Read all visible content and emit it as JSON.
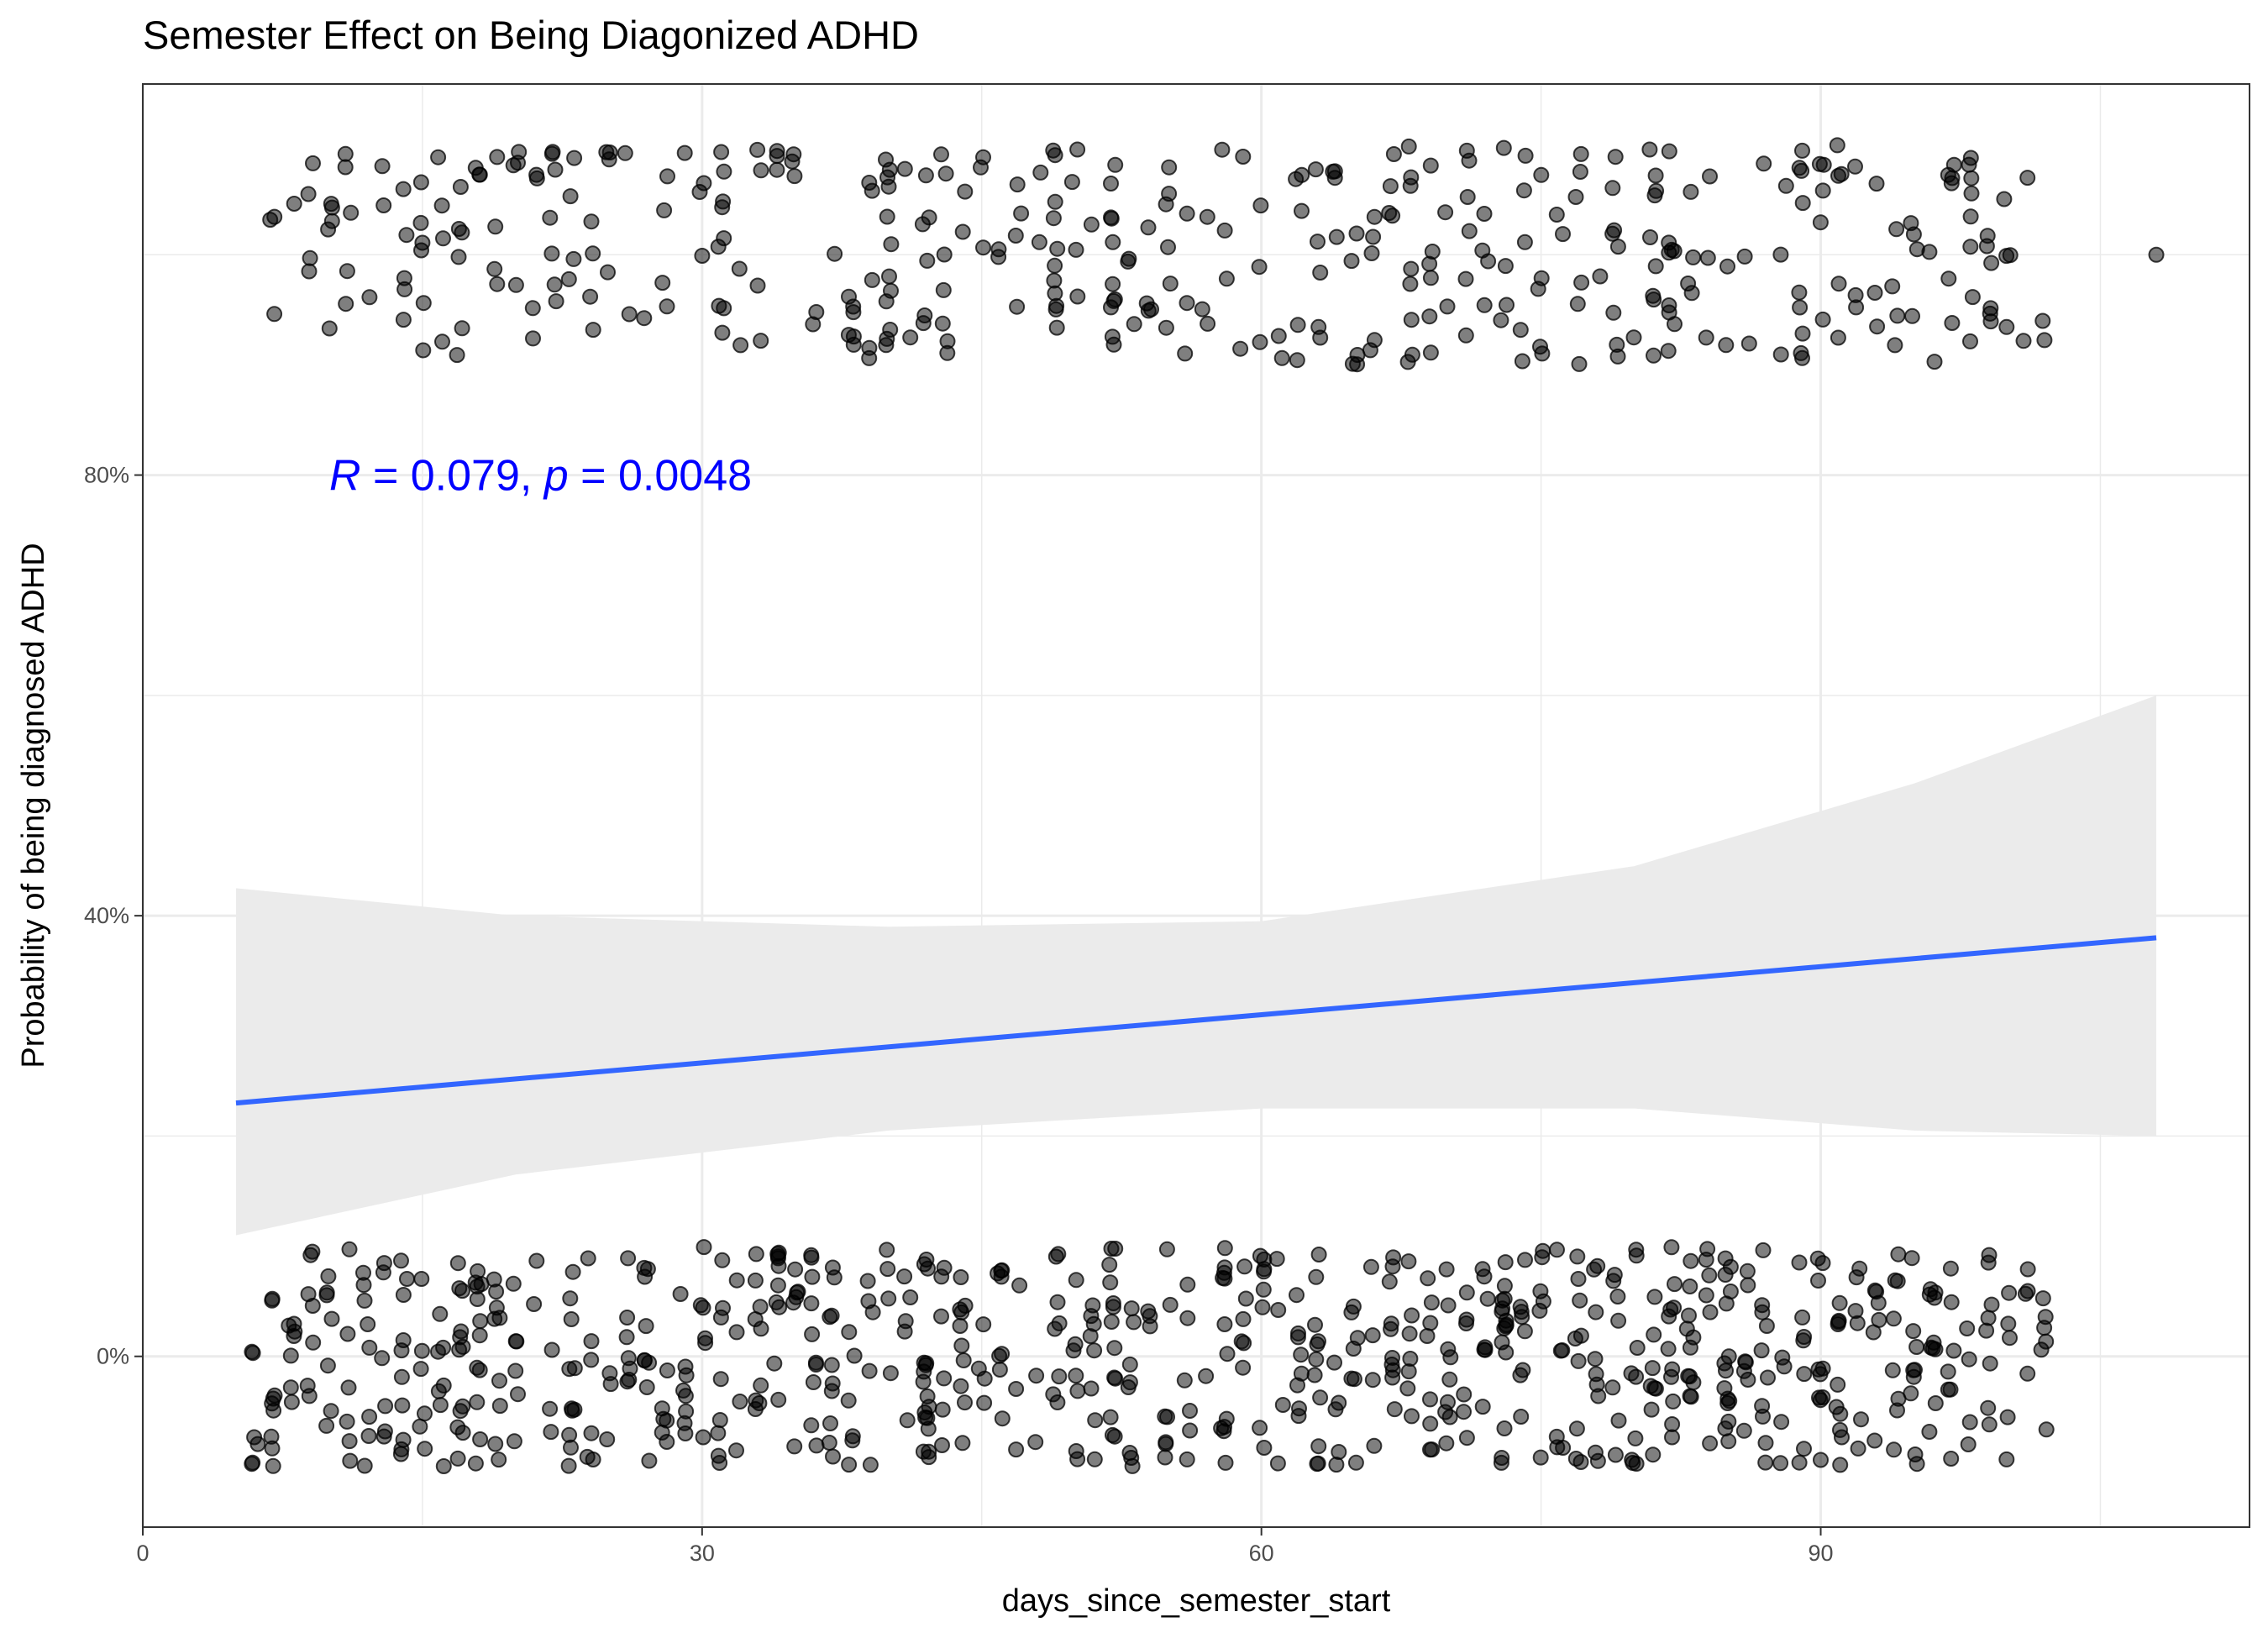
{
  "chart_data": {
    "type": "scatter",
    "title": "Semester Effect on Being Diagonized ADHD",
    "xlabel": "days_since_semester_start",
    "ylabel": "Probability of being diagnosed ADHD",
    "xlim": [
      0,
      113
    ],
    "ylim": [
      -0.155,
      1.155
    ],
    "x_ticks": [
      0,
      30,
      60,
      90
    ],
    "x_tick_labels": [
      "0",
      "30",
      "60",
      "90"
    ],
    "y_ticks": [
      0,
      0.4,
      0.8
    ],
    "y_tick_labels": [
      "0%",
      "40%",
      "80%"
    ],
    "grid": true,
    "theme": "bw",
    "point_color": "#000000",
    "point_alpha": 0.5,
    "points_jittered": true,
    "point_groups": [
      {
        "y": 0,
        "x_min": 6,
        "x_max": 102,
        "jitter_y": 0.1,
        "approx_count": 720
      },
      {
        "y": 1,
        "x_min": 7,
        "x_max": 102,
        "jitter_y": 0.1,
        "approx_count": 400,
        "outlier_x": 108,
        "outlier_y": 1.0
      }
    ],
    "series": [
      {
        "type": "line",
        "color": "#3366FF",
        "x": [
          5,
          108
        ],
        "y": [
          0.23,
          0.38
        ]
      }
    ],
    "ribbon": {
      "color": "#EBEBEB",
      "x": [
        5,
        20,
        40,
        60,
        80,
        95,
        108
      ],
      "lower": [
        0.11,
        0.165,
        0.205,
        0.225,
        0.225,
        0.205,
        0.2
      ],
      "upper": [
        0.425,
        0.4,
        0.39,
        0.395,
        0.445,
        0.52,
        0.6
      ]
    },
    "annotation": {
      "color": "#0000FF",
      "R_symbol": "R",
      "R_value": " = 0.079, ",
      "p_symbol": "p",
      "p_value": " = 0.0048",
      "x": 10,
      "y": 0.8
    }
  }
}
